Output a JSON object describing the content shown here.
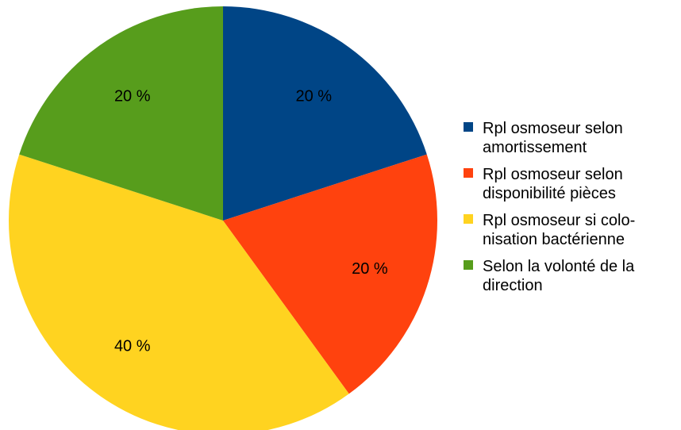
{
  "chart_data": {
    "type": "pie",
    "title": "",
    "slices": [
      {
        "label": "Rpl osmoseur selon amortissement",
        "legend_lines": [
          "Rpl osmoseur selon",
          "amortissement"
        ],
        "value": 20,
        "value_label": "20 %",
        "color": "#004586"
      },
      {
        "label": "Rpl osmoseur selon disponibilité pièces",
        "legend_lines": [
          "Rpl osmoseur selon",
          "disponibilité pièces"
        ],
        "value": 20,
        "value_label": "20 %",
        "color": "#ff420e"
      },
      {
        "label": "Rpl osmoseur si colonisation bactérienne",
        "legend_lines": [
          "Rpl osmoseur si colo-",
          "nisation bactérienne"
        ],
        "value": 40,
        "value_label": "40 %",
        "color": "#ffd320"
      },
      {
        "label": "Selon la volonté de la direction",
        "legend_lines": [
          "Selon la volonté de la",
          "direction"
        ],
        "value": 20,
        "value_label": "20 %",
        "color": "#579d1c"
      }
    ],
    "legend_position": "right"
  }
}
